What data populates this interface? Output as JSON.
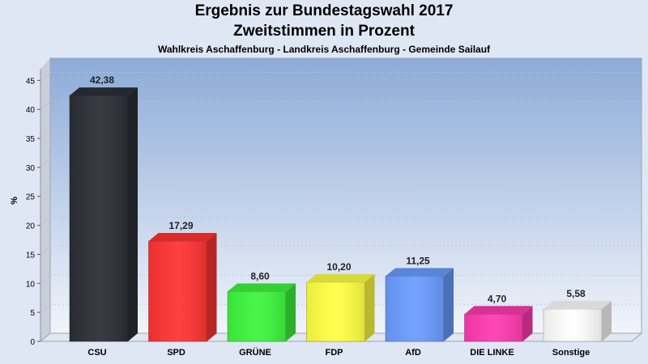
{
  "chart_data": {
    "type": "bar",
    "title": "Ergebnis zur Bundestagswahl 2017",
    "subtitle": "Zweitstimmen in Prozent",
    "caption": "Wahlkreis Aschaffenburg - Landkreis Aschaffenburg - Gemeinde Sailauf",
    "ylabel": "%",
    "ylim": [
      0,
      47
    ],
    "yticks": [
      0,
      5,
      10,
      15,
      20,
      25,
      30,
      35,
      40,
      45
    ],
    "categories": [
      "CSU",
      "SPD",
      "GRÜNE",
      "FDP",
      "AfD",
      "DIE LINKE",
      "Sonstige"
    ],
    "values": [
      42.38,
      17.29,
      8.6,
      10.2,
      11.25,
      4.7,
      5.58
    ],
    "value_labels": [
      "42,38",
      "17,29",
      "8,60",
      "10,20",
      "11,25",
      "4,70",
      "5,58"
    ],
    "colors": [
      "#2b2f36",
      "#ff3333",
      "#3df53d",
      "#ffff44",
      "#6a9cff",
      "#ff3ab0",
      "#ffffff"
    ],
    "grid": true,
    "legend": "none"
  }
}
